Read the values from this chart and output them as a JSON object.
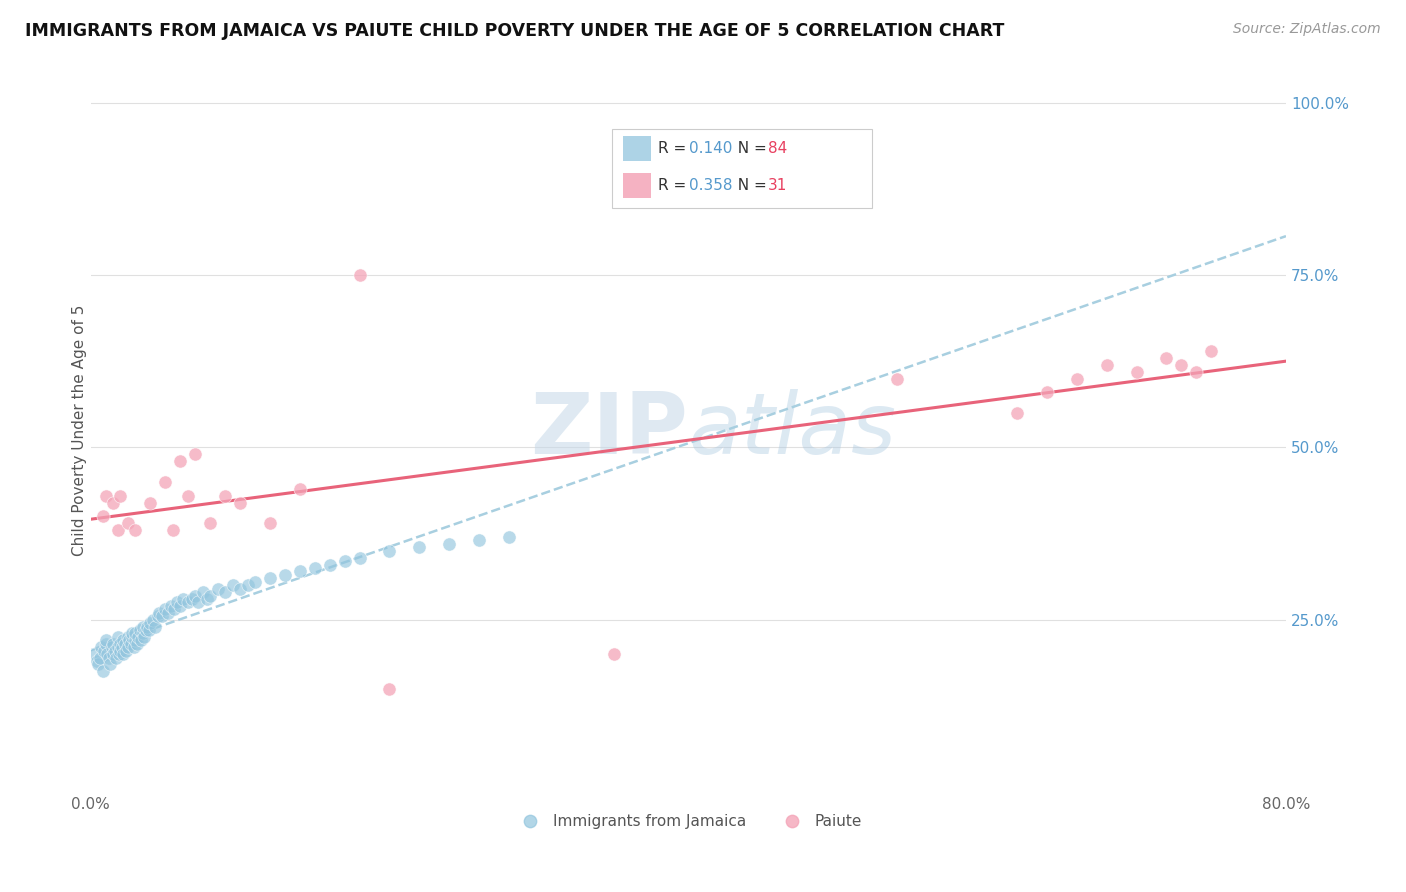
{
  "title": "IMMIGRANTS FROM JAMAICA VS PAIUTE CHILD POVERTY UNDER THE AGE OF 5 CORRELATION CHART",
  "source": "Source: ZipAtlas.com",
  "ylabel": "Child Poverty Under the Age of 5",
  "xlim": [
    0.0,
    0.8
  ],
  "ylim": [
    0.0,
    1.05
  ],
  "R_blue": 0.14,
  "N_blue": 84,
  "R_pink": 0.358,
  "N_pink": 31,
  "blue_color": "#92c5de",
  "pink_color": "#f4a5b8",
  "blue_line_color": "#a8cfe0",
  "pink_line_color": "#e8637a",
  "watermark_zip": "ZIP",
  "watermark_atlas": "atlas",
  "blue_scatter_x": [
    0.003,
    0.004,
    0.005,
    0.006,
    0.007,
    0.008,
    0.009,
    0.01,
    0.01,
    0.011,
    0.012,
    0.013,
    0.014,
    0.015,
    0.015,
    0.016,
    0.017,
    0.018,
    0.018,
    0.019,
    0.02,
    0.02,
    0.021,
    0.022,
    0.022,
    0.023,
    0.024,
    0.025,
    0.025,
    0.026,
    0.027,
    0.028,
    0.028,
    0.029,
    0.03,
    0.03,
    0.031,
    0.032,
    0.033,
    0.034,
    0.035,
    0.035,
    0.036,
    0.037,
    0.038,
    0.039,
    0.04,
    0.042,
    0.043,
    0.045,
    0.046,
    0.048,
    0.05,
    0.052,
    0.054,
    0.056,
    0.058,
    0.06,
    0.062,
    0.065,
    0.068,
    0.07,
    0.072,
    0.075,
    0.078,
    0.08,
    0.085,
    0.09,
    0.095,
    0.1,
    0.105,
    0.11,
    0.12,
    0.13,
    0.14,
    0.15,
    0.16,
    0.17,
    0.18,
    0.2,
    0.22,
    0.24,
    0.26,
    0.28
  ],
  "blue_scatter_y": [
    0.2,
    0.19,
    0.185,
    0.195,
    0.21,
    0.175,
    0.205,
    0.215,
    0.22,
    0.2,
    0.195,
    0.185,
    0.21,
    0.2,
    0.215,
    0.205,
    0.195,
    0.21,
    0.225,
    0.2,
    0.215,
    0.205,
    0.21,
    0.2,
    0.22,
    0.215,
    0.205,
    0.225,
    0.21,
    0.22,
    0.215,
    0.225,
    0.23,
    0.21,
    0.22,
    0.23,
    0.215,
    0.225,
    0.235,
    0.22,
    0.23,
    0.24,
    0.225,
    0.235,
    0.24,
    0.235,
    0.245,
    0.25,
    0.24,
    0.255,
    0.26,
    0.255,
    0.265,
    0.26,
    0.27,
    0.265,
    0.275,
    0.27,
    0.28,
    0.275,
    0.28,
    0.285,
    0.275,
    0.29,
    0.28,
    0.285,
    0.295,
    0.29,
    0.3,
    0.295,
    0.3,
    0.305,
    0.31,
    0.315,
    0.32,
    0.325,
    0.33,
    0.335,
    0.34,
    0.35,
    0.355,
    0.36,
    0.365,
    0.37
  ],
  "pink_scatter_x": [
    0.008,
    0.01,
    0.015,
    0.018,
    0.02,
    0.025,
    0.03,
    0.04,
    0.05,
    0.055,
    0.06,
    0.065,
    0.07,
    0.08,
    0.09,
    0.1,
    0.12,
    0.14,
    0.18,
    0.2,
    0.35,
    0.54,
    0.62,
    0.64,
    0.66,
    0.68,
    0.7,
    0.72,
    0.73,
    0.74,
    0.75
  ],
  "pink_scatter_y": [
    0.4,
    0.43,
    0.42,
    0.38,
    0.43,
    0.39,
    0.38,
    0.42,
    0.45,
    0.38,
    0.48,
    0.43,
    0.49,
    0.39,
    0.43,
    0.42,
    0.39,
    0.44,
    0.75,
    0.15,
    0.2,
    0.6,
    0.55,
    0.58,
    0.6,
    0.62,
    0.61,
    0.63,
    0.62,
    0.61,
    0.64
  ],
  "ytick_labels": [
    "25.0%",
    "50.0%",
    "75.0%",
    "100.0%"
  ],
  "ytick_vals": [
    0.25,
    0.5,
    0.75,
    1.0
  ]
}
